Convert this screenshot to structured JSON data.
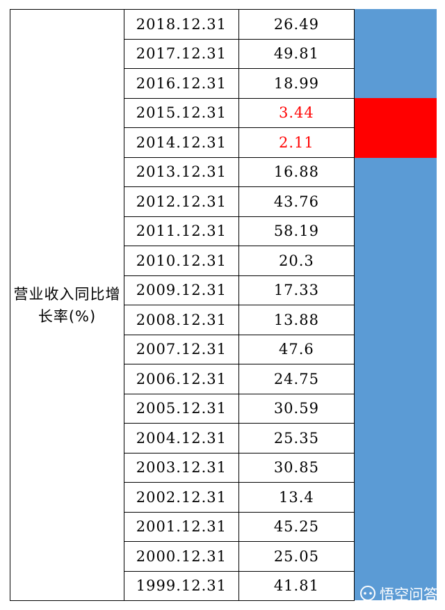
{
  "table": {
    "label": "营业收入同比增长率(%)",
    "rows": [
      {
        "date": "2018.12.31",
        "value": "26.49",
        "highlight": false
      },
      {
        "date": "2017.12.31",
        "value": "49.81",
        "highlight": false
      },
      {
        "date": "2016.12.31",
        "value": "18.99",
        "highlight": false
      },
      {
        "date": "2015.12.31",
        "value": "3.44",
        "highlight": true
      },
      {
        "date": "2014.12.31",
        "value": "2.11",
        "highlight": true
      },
      {
        "date": "2013.12.31",
        "value": "16.88",
        "highlight": false
      },
      {
        "date": "2012.12.31",
        "value": "43.76",
        "highlight": false
      },
      {
        "date": "2011.12.31",
        "value": "58.19",
        "highlight": false
      },
      {
        "date": "2010.12.31",
        "value": "20.3",
        "highlight": false
      },
      {
        "date": "2009.12.31",
        "value": "17.33",
        "highlight": false
      },
      {
        "date": "2008.12.31",
        "value": "13.88",
        "highlight": false
      },
      {
        "date": "2007.12.31",
        "value": "47.6",
        "highlight": false
      },
      {
        "date": "2006.12.31",
        "value": "24.75",
        "highlight": false
      },
      {
        "date": "2005.12.31",
        "value": "30.59",
        "highlight": false
      },
      {
        "date": "2004.12.31",
        "value": "25.35",
        "highlight": false
      },
      {
        "date": "2003.12.31",
        "value": "30.85",
        "highlight": false
      },
      {
        "date": "2002.12.31",
        "value": "13.4",
        "highlight": false
      },
      {
        "date": "2001.12.31",
        "value": "45.25",
        "highlight": false
      },
      {
        "date": "2000.12.31",
        "value": "25.05",
        "highlight": false
      },
      {
        "date": "1999.12.31",
        "value": "41.81",
        "highlight": false
      }
    ]
  },
  "colors": {
    "bar_fill": "#5b9bd5",
    "highlight": "#ff0000"
  },
  "watermark": {
    "icon": "speech-bubble-icon",
    "text": "悟空问答"
  }
}
